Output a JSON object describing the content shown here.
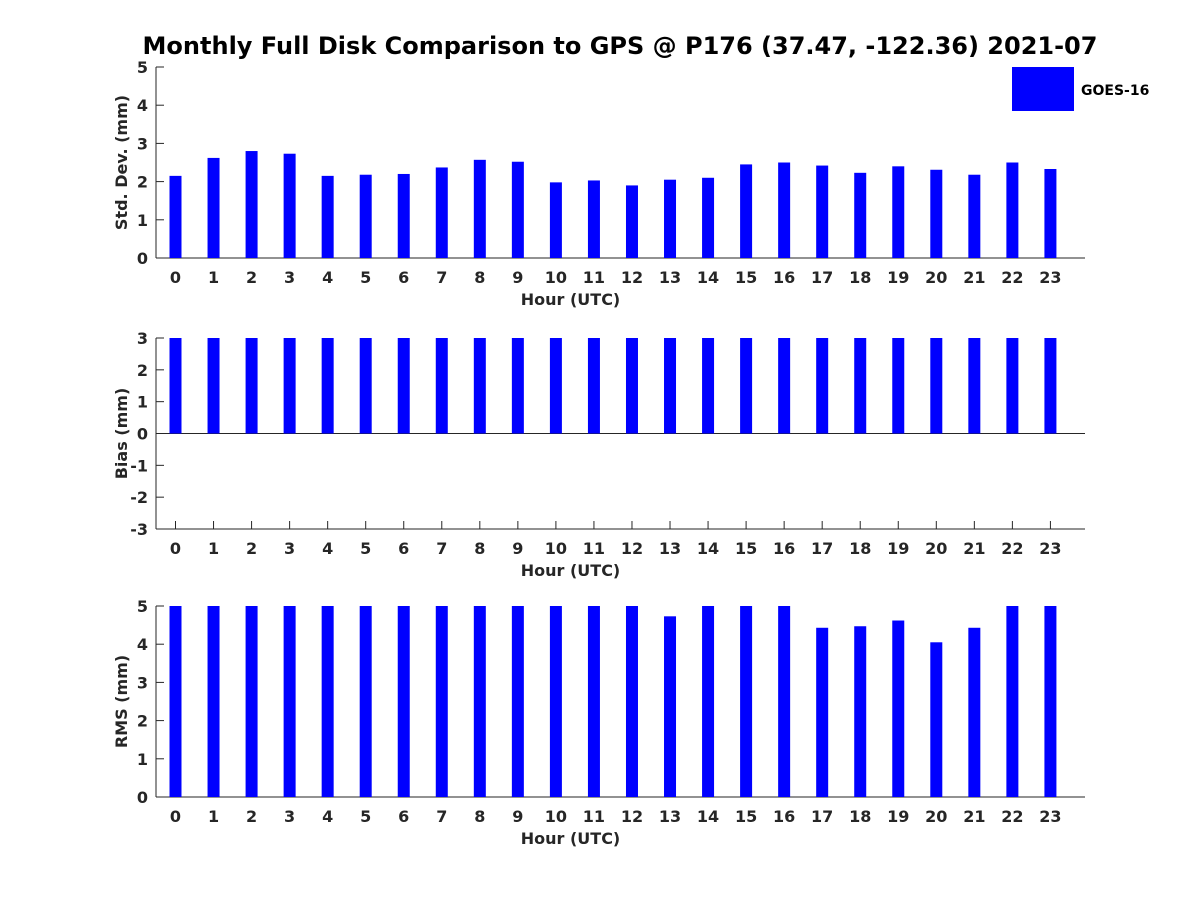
{
  "title": "Monthly Full Disk Comparison to GPS @ P176 (37.47, -122.36) 2021-07",
  "legend": {
    "label": "GOES-16",
    "color": "#0000ff"
  },
  "chart_data": [
    {
      "type": "bar",
      "xlabel": "Hour (UTC)",
      "ylabel": "Std. Dev. (mm)",
      "ylim": [
        0,
        5
      ],
      "yticks": [
        0,
        1,
        2,
        3,
        4,
        5
      ],
      "categories": [
        0,
        1,
        2,
        3,
        4,
        5,
        6,
        7,
        8,
        9,
        10,
        11,
        12,
        13,
        14,
        15,
        16,
        17,
        18,
        19,
        20,
        21,
        22,
        23
      ],
      "series": [
        {
          "name": "GOES-16",
          "color": "#0000ff",
          "values": [
            2.15,
            2.62,
            2.8,
            2.73,
            2.15,
            2.18,
            2.2,
            2.37,
            2.57,
            2.52,
            1.98,
            2.03,
            1.9,
            2.05,
            2.1,
            2.45,
            2.5,
            2.42,
            2.23,
            2.4,
            2.31,
            2.18,
            2.5,
            2.33
          ]
        }
      ]
    },
    {
      "type": "bar",
      "xlabel": "Hour (UTC)",
      "ylabel": "Bias (mm)",
      "ylim": [
        -3,
        3
      ],
      "yticks": [
        -3,
        -2,
        -1,
        0,
        1,
        2,
        3
      ],
      "categories": [
        0,
        1,
        2,
        3,
        4,
        5,
        6,
        7,
        8,
        9,
        10,
        11,
        12,
        13,
        14,
        15,
        16,
        17,
        18,
        19,
        20,
        21,
        22,
        23
      ],
      "series": [
        {
          "name": "GOES-16",
          "color": "#0000ff",
          "values": [
            3,
            3,
            3,
            3,
            3,
            3,
            3,
            3,
            3,
            3,
            3,
            3,
            3,
            3,
            3,
            3,
            3,
            3,
            3,
            3,
            3,
            3,
            3,
            3
          ]
        }
      ]
    },
    {
      "type": "bar",
      "xlabel": "Hour (UTC)",
      "ylabel": "RMS (mm)",
      "ylim": [
        0,
        5
      ],
      "yticks": [
        0,
        1,
        2,
        3,
        4,
        5
      ],
      "categories": [
        0,
        1,
        2,
        3,
        4,
        5,
        6,
        7,
        8,
        9,
        10,
        11,
        12,
        13,
        14,
        15,
        16,
        17,
        18,
        19,
        20,
        21,
        22,
        23
      ],
      "series": [
        {
          "name": "GOES-16",
          "color": "#0000ff",
          "values": [
            5,
            5,
            5,
            5,
            5,
            5,
            5,
            5,
            5,
            5,
            5,
            5,
            5,
            4.73,
            5,
            5,
            5,
            4.43,
            4.47,
            4.62,
            4.05,
            4.43,
            5,
            5
          ]
        }
      ]
    }
  ]
}
